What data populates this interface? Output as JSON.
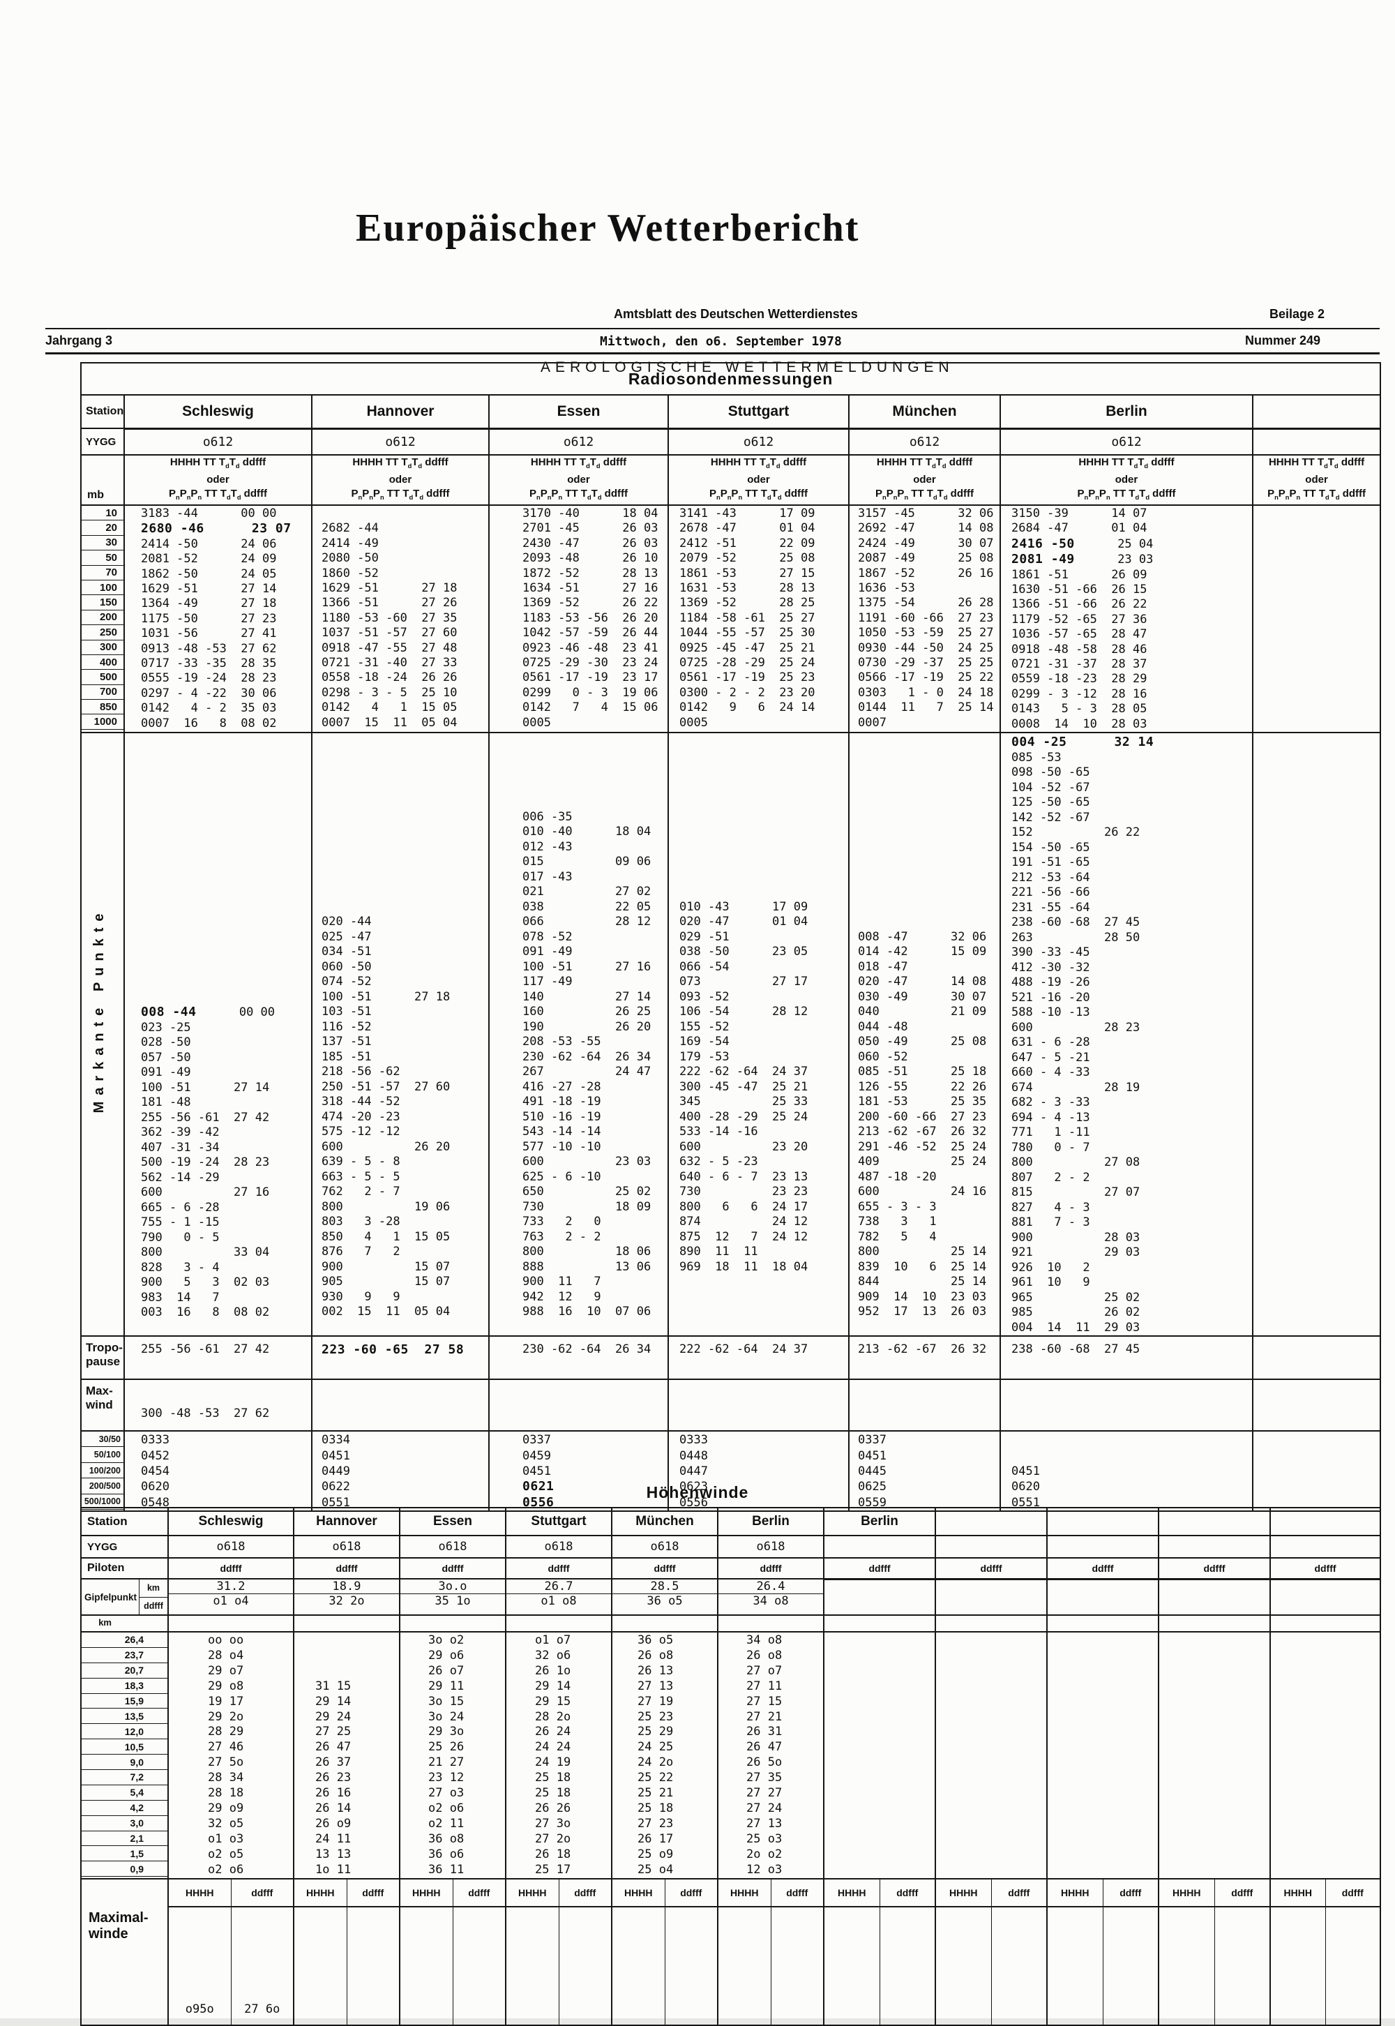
{
  "header": {
    "title": "Europäischer Wetterbericht",
    "subtitle": "Amtsblatt des Deutschen Wetterdienstes",
    "subtitle2": "AEROLOGISCHE WETTERMELDUNGEN",
    "beilage": "Beilage 2",
    "jahrgang": "Jahrgang 3",
    "date": "Mittwoch, den o6. September 1978",
    "nummer": "Nummer 249"
  },
  "radiosonde": {
    "title": "Radiosondenmessungen",
    "station_label": "Station",
    "yygg_label": "YYGG",
    "mb_label": "mb",
    "col_header": [
      "HHHH TT T~d~T~d~ ddfff",
      "oder",
      "P~n~P~n~P~n~ TT T~d~T~d~ ddfff"
    ],
    "stations": [
      "Schleswig",
      "Hannover",
      "Essen",
      "Stuttgart",
      "München",
      "Berlin"
    ],
    "yygg": [
      "o612",
      "o612",
      "o612",
      "o612",
      "o612",
      "o612"
    ],
    "mb_levels": [
      "10",
      "20",
      "30",
      "50",
      "70",
      "100",
      "150",
      "200",
      "250",
      "300",
      "400",
      "500",
      "700",
      "850",
      "1000"
    ],
    "pressure": [
      [
        "3183 -44      00 00",
        "2680 -46      23 07",
        "2414 -50      24 06",
        "2081 -52      24 09",
        "1862 -50      24 05",
        "1629 -51      27 14",
        "1364 -49      27 18",
        "1175 -50      27 23",
        "1031 -56      27 41",
        "0913 -48 -53  27 62",
        "0717 -33 -35  28 35",
        "0555 -19 -24  28 23",
        "0297 - 4 -22  30 06",
        "0142   4 - 2  35 03",
        "0007  16   8  08 02"
      ],
      [
        "",
        "2682 -44",
        "2414 -49",
        "2080 -50",
        "1860 -52",
        "1629 -51      27 18",
        "1366 -51      27 26",
        "1180 -53 -60  27 35",
        "1037 -51 -57  27 60",
        "0918 -47 -55  27 48",
        "0721 -31 -40  27 33",
        "0558 -18 -24  26 26",
        "0298 - 3 - 5  25 10",
        "0142   4   1  15 05",
        "0007  15  11  05 04"
      ],
      [
        "3170 -40      18 04",
        "2701 -45      26 03",
        "2430 -47      26 03",
        "2093 -48      26 10",
        "1872 -52      28 13",
        "1634 -51      27 16",
        "1369 -52      26 22",
        "1183 -53 -56  26 20",
        "1042 -57 -59  26 44",
        "0923 -46 -48  23 41",
        "0725 -29 -30  23 24",
        "0561 -17 -19  23 17",
        "0299   0 - 3  19 06",
        "0142   7   4  15 06",
        "0005"
      ],
      [
        "3141 -43      17 09",
        "2678 -47      01 04",
        "2412 -51      22 09",
        "2079 -52      25 08",
        "1861 -53      27 15",
        "1631 -53      28 13",
        "1369 -52      28 25",
        "1184 -58 -61  25 27",
        "1044 -55 -57  25 30",
        "0925 -45 -47  25 21",
        "0725 -28 -29  25 24",
        "0561 -17 -19  25 23",
        "0300 - 2 - 2  23 20",
        "0142   9   6  24 14",
        "0005"
      ],
      [
        "3157 -45      32 06",
        "2692 -47      14 08",
        "2424 -49      30 07",
        "2087 -49      25 08",
        "1867 -52      26 16",
        "1636 -53",
        "1375 -54      26 28",
        "1191 -60 -66  27 23",
        "1050 -53 -59  25 27",
        "0930 -44 -50  24 25",
        "0730 -29 -37  25 25",
        "0566 -17 -19  25 22",
        "0303   1 - 0  24 18",
        "0144  11   7  25 14",
        "0007"
      ],
      [
        "3150 -39      14 07",
        "2684 -47      01 04",
        "2416 -50      25 04",
        "2081 -49      23 03",
        "1861 -51      26 09",
        "1630 -51 -66  26 15",
        "1366 -51 -66  26 22",
        "1179 -52 -65  27 36",
        "1036 -57 -65  28 47",
        "0918 -48 -58  28 46",
        "0721 -31 -37  28 37",
        "0559 -18 -23  28 29",
        "0299 - 3 -12  28 16",
        "0143   5 - 3  28 05",
        "0008  14  10  28 03"
      ]
    ],
    "pressure_hw": [
      [
        0,
        1,
        0
      ],
      [
        5,
        2,
        8
      ],
      [
        5,
        3,
        8
      ]
    ],
    "markante_label": "Markante Punkte",
    "markante_offsets": [
      18,
      12,
      5,
      11,
      13,
      0
    ],
    "markante": [
      [
        "008 -44      00 00",
        "023 -25",
        "028 -50",
        "057 -50",
        "091 -49",
        "100 -51      27 14",
        "181 -48",
        "255 -56 -61  27 42",
        "362 -39 -42",
        "407 -31 -34",
        "500 -19 -24  28 23",
        "562 -14 -29",
        "600          27 16",
        "665 - 6 -28",
        "755 - 1 -15",
        "790   0 - 5",
        "800          33 04",
        "828   3 - 4",
        "900   5   3  02 03",
        "983  14   7",
        "003  16   8  08 02"
      ],
      [
        "020 -44",
        "025 -47",
        "034 -51",
        "060 -50",
        "074 -52",
        "100 -51      27 18",
        "103 -51",
        "116 -52",
        "137 -51",
        "185 -51",
        "218 -56 -62",
        "250 -51 -57  27 60",
        "318 -44 -52",
        "474 -20 -23",
        "575 -12 -12",
        "600          26 20",
        "639 - 5 - 8",
        "663 - 5 - 5",
        "762   2 - 7",
        "800          19 06",
        "803   3 -28",
        "850   4   1  15 05",
        "876   7   2",
        "900          15 07",
        "905          15 07",
        "930   9   9",
        "002  15  11  05 04"
      ],
      [
        "006 -35",
        "010 -40      18 04",
        "012 -43",
        "015          09 06",
        "017 -43",
        "021          27 02",
        "038          22 05",
        "066          28 12",
        "078 -52",
        "091 -49",
        "100 -51      27 16",
        "117 -49",
        "140          27 14",
        "160          26 25",
        "190          26 20",
        "208 -53 -55",
        "230 -62 -64  26 34",
        "267          24 47",
        "416 -27 -28",
        "491 -18 -19",
        "510 -16 -19",
        "543 -14 -14",
        "577 -10 -10",
        "600          23 03",
        "625 - 6 -10",
        "650          25 02",
        "730          18 09",
        "733   2   0",
        "763   2 - 2",
        "800          18 06",
        "888          13 06",
        "900  11   7",
        "942  12   9",
        "988  16  10  07 06"
      ],
      [
        "010 -43      17 09",
        "020 -47      01 04",
        "029 -51",
        "038 -50      23 05",
        "066 -54",
        "073          27 17",
        "093 -52",
        "106 -54      28 12",
        "155 -52",
        "169 -54",
        "179 -53",
        "222 -62 -64  24 37",
        "300 -45 -47  25 21",
        "345          25 33",
        "400 -28 -29  25 24",
        "533 -14 -16",
        "600          23 20",
        "632 - 5 -23",
        "640 - 6 - 7  23 13",
        "730          23 23",
        "800   6   6  24 17",
        "874          24 12",
        "875  12   7  24 12",
        "890  11  11",
        "969  18  11  18 04"
      ],
      [
        "008 -47      32 06",
        "014 -42      15 09",
        "018 -47",
        "020 -47      14 08",
        "030 -49      30 07",
        "040          21 09",
        "044 -48",
        "050 -49      25 08",
        "060 -52",
        "085 -51      25 18",
        "126 -55      22 26",
        "181 -53      25 35",
        "200 -60 -66  27 23",
        "213 -62 -67  26 32",
        "291 -46 -52  25 24",
        "409          25 24",
        "487 -18 -20",
        "600          24 16",
        "655 - 3 - 3",
        "738   3   1",
        "782   5   4",
        "800          25 14",
        "839  10   6  25 14",
        "844          25 14",
        "909  14  10  23 03",
        "952  17  13  26 03"
      ],
      [
        "004 -25      32 14",
        "085 -53",
        "098 -50 -65",
        "104 -52 -67",
        "125 -50 -65",
        "142 -52 -67",
        "152          26 22",
        "154 -50 -65",
        "191 -51 -65",
        "212 -53 -64",
        "221 -56 -66",
        "231 -55 -64",
        "238 -60 -68  27 45",
        "263          28 50",
        "390 -33 -45",
        "412 -30 -32",
        "488 -19 -26",
        "521 -16 -20",
        "588 -10 -13",
        "600          28 23",
        "631 - 6 -28",
        "647 - 5 -21",
        "660 - 4 -33",
        "674          28 19",
        "682 - 3 -33",
        "694 - 4 -13",
        "771   1 -11",
        "780   0 - 7",
        "800          27 08",
        "807   2 - 2",
        "815          27 07",
        "827   4 - 3",
        "881   7 - 3",
        "900          28 03",
        "921          29 03",
        "926  10   2",
        "961  10   9",
        "965          25 02",
        "985          26 02",
        "004  14  11  29 03"
      ]
    ],
    "markante_hw": [
      [
        0,
        0,
        7
      ],
      [
        5,
        0,
        0
      ]
    ],
    "tropopause_label": "Tropo-\npause",
    "tropopause": [
      "255 -56 -61  27 42",
      "223 -60 -65  27 58",
      "230 -62 -64  26 34",
      "222 -62 -64  24 37",
      "213 -62 -67  26 32",
      "238 -60 -68  27 45"
    ],
    "tropopause_hw": [
      1
    ],
    "maxwind_label": "Max-\nwind",
    "maxwind": [
      "300 -48 -53  27 62",
      "",
      "",
      "",
      "",
      ""
    ],
    "ratio_labels": [
      "30/50",
      "50/100",
      "100/200",
      "200/500",
      "500/1000"
    ],
    "ratios": [
      [
        "0333",
        "0334",
        "0337",
        "0333",
        "0337",
        ""
      ],
      [
        "0452",
        "0451",
        "0459",
        "0448",
        "0451",
        ""
      ],
      [
        "0454",
        "0449",
        "0451",
        "0447",
        "0445",
        "0451"
      ],
      [
        "0620",
        "0622",
        "0621",
        "0623",
        "0625",
        "0620"
      ],
      [
        "0548",
        "0551",
        "0556",
        "0556",
        "0559",
        "0551"
      ]
    ],
    "ratios_hw": [
      [
        3,
        2
      ],
      [
        4,
        2
      ]
    ]
  },
  "hoehenwinde": {
    "title": "Höhenwinde",
    "station_label": "Station",
    "stations": [
      "Schleswig",
      "Hannover",
      "Essen",
      "Stuttgart",
      "München",
      "Berlin",
      "Berlin",
      "",
      "",
      "",
      ""
    ],
    "yygg_label": "YYGG",
    "yygg": [
      "o618",
      "o618",
      "o618",
      "o618",
      "o618",
      "o618",
      "",
      "",
      "",
      "",
      ""
    ],
    "piloten_label": "Piloten",
    "piloten_ddfff": "ddfff",
    "gipfel_label": "Gipfelpunkt",
    "gipfel_km_label": "km",
    "gipfel_ddfff_label": "ddfff",
    "gipfel_km": [
      "31.2",
      "18.9",
      "3o.o",
      "26.7",
      "28.5",
      "26.4",
      "",
      "",
      "",
      "",
      ""
    ],
    "gipfel_ddfff": [
      "o1 o4",
      "32 2o",
      "35 1o",
      "o1 o8",
      "36 o5",
      "34 o8",
      "",
      "",
      "",
      "",
      ""
    ],
    "km_header": "km",
    "km_levels": [
      "26,4",
      "23,7",
      "20,7",
      "18,3",
      "15,9",
      "13,5",
      "12,0",
      "10,5",
      "9,0",
      "7,2",
      "5,4",
      "4,2",
      "3,0",
      "2,1",
      "1,5",
      "0,9"
    ],
    "winds": [
      [
        "oo oo",
        "28 o4",
        "29 o7",
        "29 o8",
        "19 17",
        "29 2o",
        "28 29",
        "27 46",
        "27 5o",
        "28 34",
        "28 18",
        "29 o9",
        "32 o5",
        "o1 o3",
        "o2 o5",
        "o2 o6"
      ],
      [
        "",
        "",
        "",
        "31 15",
        "29 14",
        "29 24",
        "27 25",
        "26 47",
        "26 37",
        "26 23",
        "26 16",
        "26 14",
        "26 o9",
        "24 11",
        "13 13",
        "1o 11"
      ],
      [
        "3o o2",
        "29 o6",
        "26 o7",
        "29 11",
        "3o 15",
        "3o 24",
        "29 3o",
        "25 26",
        "21 27",
        "23 12",
        "27 o3",
        "o2 o6",
        "o2 11",
        "36 o8",
        "36 o6",
        "36 11"
      ],
      [
        "o1 o7",
        "32 o6",
        "26 1o",
        "29 14",
        "29 15",
        "28 2o",
        "26 24",
        "24 24",
        "24 19",
        "25 18",
        "25 18",
        "26 26",
        "27 3o",
        "27 2o",
        "26 18",
        "25 17"
      ],
      [
        "36 o5",
        "26 o8",
        "26 13",
        "27 13",
        "27 19",
        "25 23",
        "25 29",
        "24 25",
        "24 2o",
        "25 22",
        "25 21",
        "25 18",
        "27 23",
        "26 17",
        "25 o9",
        "25 o4"
      ],
      [
        "34 o8",
        "26 o8",
        "27 o7",
        "27 11",
        "27 15",
        "27 21",
        "26 31",
        "26 47",
        "26 5o",
        "27 35",
        "27 27",
        "27 24",
        "27 13",
        "25 o3",
        "2o o2",
        "12 o3"
      ],
      [],
      [],
      [],
      [],
      []
    ]
  },
  "maximalwinde": {
    "label": "Maximal-\nwinde",
    "hhhh_label": "HHHH",
    "ddfff_label": "ddfff",
    "hhhh_values": [
      "o95o",
      "",
      "",
      "",
      "",
      "",
      "",
      "",
      "",
      "",
      ""
    ],
    "ddfff_values": [
      "27 6o",
      "",
      "",
      "",
      "",
      "",
      "",
      "",
      "",
      "",
      ""
    ]
  }
}
